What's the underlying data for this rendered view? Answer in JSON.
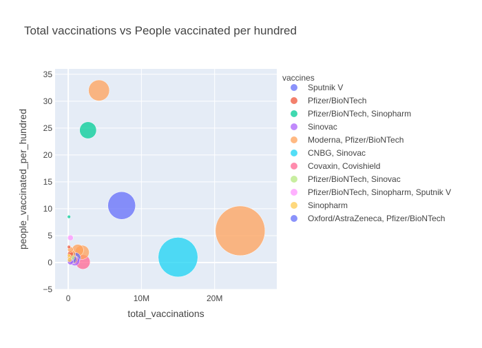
{
  "chart_data": {
    "type": "scatter",
    "title": "Total vaccinations vs People vaccinated per hundred",
    "xlabel": "total_vaccinations",
    "ylabel": "people_vaccinated_per_hundred",
    "xlim": [
      -1800000,
      28500000
    ],
    "ylim": [
      -5,
      36
    ],
    "x_ticks": [
      0,
      10000000,
      20000000
    ],
    "x_tick_labels": [
      "0",
      "10M",
      "20M"
    ],
    "y_ticks": [
      -5,
      0,
      5,
      10,
      15,
      20,
      25,
      30,
      35
    ],
    "y_tick_labels": [
      "−5",
      "0",
      "5",
      "10",
      "15",
      "20",
      "25",
      "30",
      "35"
    ],
    "legend_title": "vaccines",
    "legend_position": "right",
    "series": [
      {
        "name": "Sputnik V",
        "color": "#636efa",
        "points": [
          {
            "x": 7300000,
            "y": 10.6
          },
          {
            "x": 300000,
            "y": 0.3
          }
        ]
      },
      {
        "name": "Pfizer/BioNTech",
        "color": "#ef553b",
        "points": [
          {
            "x": 100000,
            "y": 2.9
          },
          {
            "x": 300000,
            "y": 1.6
          },
          {
            "x": 700000,
            "y": 0.6
          }
        ]
      },
      {
        "name": "Pfizer/BioNTech, Sinopharm",
        "color": "#00cc96",
        "points": [
          {
            "x": 2700000,
            "y": 24.6
          },
          {
            "x": 100000,
            "y": 8.5
          }
        ]
      },
      {
        "name": "Sinovac",
        "color": "#ab63fa",
        "points": [
          {
            "x": 900000,
            "y": 0.3
          },
          {
            "x": 300000,
            "y": 0.1
          }
        ]
      },
      {
        "name": "Moderna, Pfizer/BioNTech",
        "color": "#ffa15a",
        "points": [
          {
            "x": 23500000,
            "y": 5.9
          },
          {
            "x": 4200000,
            "y": 32.0
          },
          {
            "x": 1900000,
            "y": 1.9
          },
          {
            "x": 1300000,
            "y": 2.3
          },
          {
            "x": 500000,
            "y": 1.6
          },
          {
            "x": 300000,
            "y": 2.4
          },
          {
            "x": 200000,
            "y": 1.0
          },
          {
            "x": 600000,
            "y": 0.8
          }
        ]
      },
      {
        "name": "CNBG, Sinovac",
        "color": "#19d3f3",
        "points": [
          {
            "x": 15000000,
            "y": 1.0
          }
        ]
      },
      {
        "name": "Covaxin, Covishield",
        "color": "#ff6692",
        "points": [
          {
            "x": 2000000,
            "y": 0.1
          }
        ]
      },
      {
        "name": "Pfizer/BioNTech, Sinovac",
        "color": "#b6e880",
        "points": [
          {
            "x": 400000,
            "y": 0.9
          }
        ]
      },
      {
        "name": "Pfizer/BioNTech, Sinopharm, Sputnik V",
        "color": "#ff97ff",
        "points": [
          {
            "x": 300000,
            "y": 4.6
          }
        ]
      },
      {
        "name": "Sinopharm",
        "color": "#fecb52",
        "points": [
          {
            "x": 100000,
            "y": 1.3
          },
          {
            "x": 200000,
            "y": 0.5
          }
        ]
      },
      {
        "name": "Oxford/AstraZeneca, Pfizer/BioNTech",
        "color": "#636efa",
        "points": [
          {
            "x": 600000,
            "y": 0.6
          },
          {
            "x": 1000000,
            "y": 0.9
          }
        ]
      }
    ],
    "marker_size_encodes": "total_vaccinations"
  }
}
